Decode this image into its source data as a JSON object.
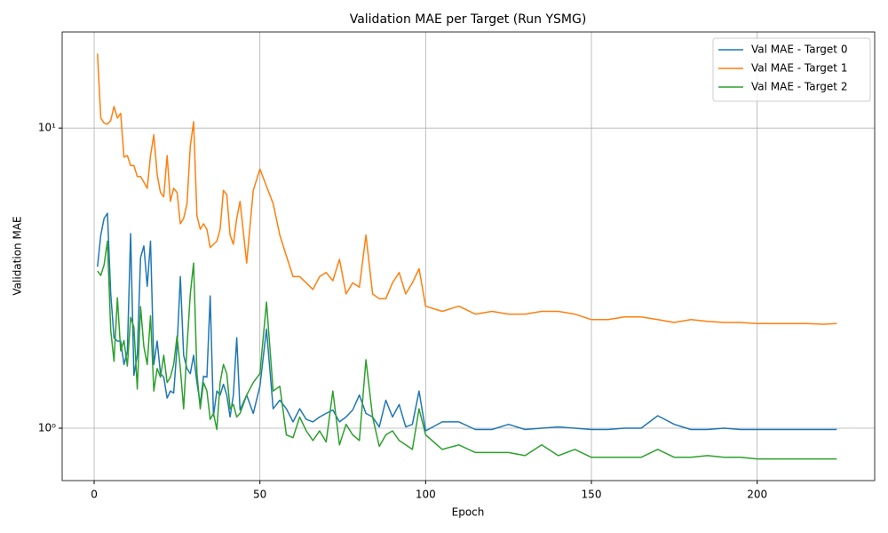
{
  "chart_data": {
    "type": "line",
    "title": "Validation MAE per Target (Run YSMG)",
    "xlabel": "Epoch",
    "ylabel": "Validation MAE",
    "yscale": "log",
    "grid": true,
    "legend": "upper right",
    "xlim": [
      -9.65,
      235.45
    ],
    "xticks": [
      0,
      50,
      100,
      150,
      200
    ],
    "ylim": [
      0.669,
      20.9
    ],
    "yticks": [
      {
        "value": 1,
        "label": "10⁰"
      },
      {
        "value": 10,
        "label": "10¹"
      }
    ],
    "x": [
      1,
      2,
      3,
      4,
      5,
      6,
      7,
      8,
      9,
      10,
      11,
      12,
      13,
      14,
      15,
      16,
      17,
      18,
      19,
      20,
      21,
      22,
      23,
      24,
      25,
      26,
      27,
      28,
      29,
      30,
      31,
      32,
      33,
      34,
      35,
      36,
      37,
      38,
      39,
      40,
      41,
      42,
      43,
      44,
      46,
      48,
      50,
      52,
      54,
      56,
      58,
      60,
      62,
      64,
      66,
      68,
      70,
      72,
      74,
      76,
      78,
      80,
      82,
      84,
      86,
      88,
      90,
      92,
      94,
      96,
      98,
      100,
      105,
      110,
      115,
      120,
      125,
      130,
      135,
      140,
      145,
      150,
      155,
      160,
      165,
      170,
      175,
      180,
      185,
      190,
      195,
      200,
      205,
      210,
      215,
      220,
      224
    ],
    "series": [
      {
        "name": "Val MAE - Target 0",
        "color": "#1f77b4",
        "values": [
          3.45,
          4.4,
          5.0,
          5.2,
          2.8,
          2.0,
          1.95,
          1.95,
          1.63,
          1.8,
          4.45,
          1.5,
          1.75,
          3.7,
          4.05,
          2.97,
          4.2,
          1.63,
          1.95,
          1.52,
          1.48,
          1.26,
          1.33,
          1.31,
          1.87,
          3.2,
          1.75,
          1.58,
          1.52,
          1.75,
          1.42,
          1.2,
          1.49,
          1.48,
          2.76,
          1.1,
          1.33,
          1.29,
          1.4,
          1.29,
          1.09,
          1.29,
          2.0,
          1.15,
          1.29,
          1.12,
          1.38,
          2.14,
          1.16,
          1.24,
          1.16,
          1.05,
          1.16,
          1.07,
          1.05,
          1.09,
          1.12,
          1.15,
          1.05,
          1.09,
          1.15,
          1.29,
          1.12,
          1.09,
          1.01,
          1.24,
          1.09,
          1.2,
          1.01,
          1.03,
          1.33,
          0.98,
          1.05,
          1.05,
          0.99,
          0.99,
          1.03,
          0.99,
          1.0,
          1.01,
          1.0,
          0.99,
          0.99,
          1.0,
          1.0,
          1.1,
          1.03,
          0.99,
          0.99,
          1.0,
          0.99,
          0.99,
          0.99,
          0.99,
          0.99,
          0.99,
          0.99
        ]
      },
      {
        "name": "Val MAE - Target 1",
        "color": "#ff7f0e",
        "values": [
          17.7,
          10.8,
          10.4,
          10.3,
          10.6,
          11.8,
          10.8,
          11.2,
          8.0,
          8.1,
          7.5,
          7.5,
          6.9,
          6.9,
          6.6,
          6.3,
          8.1,
          9.5,
          7.0,
          6.1,
          5.9,
          8.1,
          5.7,
          6.3,
          6.1,
          4.8,
          5.0,
          5.6,
          8.7,
          10.5,
          5.1,
          4.6,
          4.8,
          4.6,
          4.0,
          4.1,
          4.2,
          4.6,
          6.2,
          6.0,
          4.4,
          4.1,
          5.0,
          5.7,
          3.55,
          6.2,
          7.3,
          6.4,
          5.6,
          4.4,
          3.75,
          3.2,
          3.2,
          3.05,
          2.9,
          3.2,
          3.3,
          3.1,
          3.65,
          2.8,
          3.05,
          2.95,
          4.4,
          2.8,
          2.7,
          2.7,
          3.05,
          3.3,
          2.8,
          3.05,
          3.4,
          2.55,
          2.45,
          2.55,
          2.4,
          2.45,
          2.4,
          2.4,
          2.45,
          2.45,
          2.4,
          2.3,
          2.3,
          2.35,
          2.35,
          2.3,
          2.25,
          2.3,
          2.27,
          2.25,
          2.25,
          2.23,
          2.23,
          2.23,
          2.23,
          2.22,
          2.23
        ]
      },
      {
        "name": "Val MAE - Target 2",
        "color": "#2ca02c",
        "values": [
          3.34,
          3.23,
          3.5,
          4.2,
          2.12,
          1.67,
          2.72,
          1.81,
          1.96,
          1.61,
          2.34,
          2.17,
          1.35,
          2.54,
          1.87,
          1.63,
          2.37,
          1.33,
          1.58,
          1.48,
          1.75,
          1.42,
          1.48,
          1.63,
          2.03,
          1.58,
          1.16,
          1.87,
          2.8,
          3.55,
          1.52,
          1.16,
          1.42,
          1.33,
          1.07,
          1.12,
          0.99,
          1.42,
          1.63,
          1.52,
          1.16,
          1.2,
          1.09,
          1.12,
          1.29,
          1.42,
          1.52,
          2.63,
          1.33,
          1.38,
          0.95,
          0.93,
          1.09,
          0.98,
          0.91,
          0.98,
          0.9,
          1.33,
          0.88,
          1.03,
          0.95,
          0.91,
          1.69,
          1.09,
          0.87,
          0.95,
          0.98,
          0.91,
          0.88,
          0.85,
          1.16,
          0.95,
          0.85,
          0.88,
          0.83,
          0.83,
          0.83,
          0.81,
          0.88,
          0.81,
          0.85,
          0.8,
          0.8,
          0.8,
          0.8,
          0.85,
          0.8,
          0.8,
          0.81,
          0.8,
          0.8,
          0.79,
          0.79,
          0.79,
          0.79,
          0.79,
          0.79
        ]
      }
    ]
  }
}
